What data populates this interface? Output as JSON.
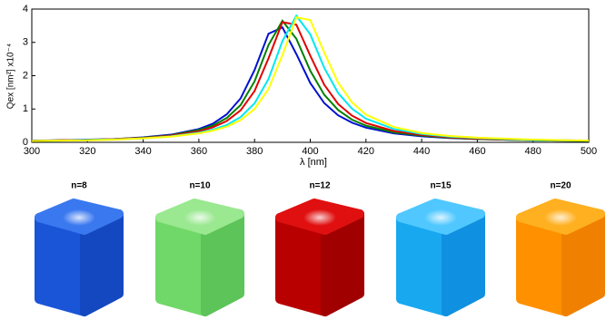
{
  "chart_data": {
    "type": "line",
    "x_label": "λ [nm]",
    "y_label": "Qex [nm²] x10⁻⁴",
    "x": [
      300,
      310,
      320,
      330,
      340,
      350,
      360,
      365,
      370,
      375,
      380,
      385,
      390,
      395,
      400,
      405,
      410,
      415,
      420,
      430,
      440,
      450,
      460,
      480,
      500
    ],
    "series": [
      {
        "name": "n=8",
        "color": "#0010d0",
        "values": [
          0.05,
          0.06,
          0.08,
          0.1,
          0.15,
          0.23,
          0.4,
          0.56,
          0.84,
          1.32,
          2.17,
          3.26,
          3.45,
          2.65,
          1.78,
          1.18,
          0.81,
          0.59,
          0.44,
          0.27,
          0.18,
          0.13,
          0.1,
          0.06,
          0.04
        ]
      },
      {
        "name": "n=10",
        "color": "#008000",
        "values": [
          0.04,
          0.06,
          0.07,
          0.1,
          0.14,
          0.21,
          0.37,
          0.5,
          0.73,
          1.12,
          1.83,
          2.92,
          3.65,
          3.11,
          2.15,
          1.43,
          0.97,
          0.68,
          0.5,
          0.3,
          0.2,
          0.14,
          0.1,
          0.06,
          0.04
        ]
      },
      {
        "name": "n=12",
        "color": "#e00000",
        "values": [
          0.04,
          0.06,
          0.07,
          0.1,
          0.13,
          0.2,
          0.33,
          0.45,
          0.64,
          0.96,
          1.54,
          2.52,
          3.61,
          3.53,
          2.6,
          1.73,
          1.15,
          0.8,
          0.58,
          0.34,
          0.22,
          0.15,
          0.11,
          0.07,
          0.05
        ]
      },
      {
        "name": "n=15",
        "color": "#00e8f0",
        "values": [
          0.04,
          0.05,
          0.07,
          0.09,
          0.12,
          0.18,
          0.29,
          0.38,
          0.52,
          0.76,
          1.17,
          1.9,
          3.04,
          3.8,
          3.24,
          2.24,
          1.48,
          1.01,
          0.71,
          0.4,
          0.25,
          0.17,
          0.13,
          0.07,
          0.05
        ]
      },
      {
        "name": "n=20",
        "color": "#ffff00",
        "values": [
          0.04,
          0.05,
          0.06,
          0.08,
          0.12,
          0.17,
          0.27,
          0.35,
          0.47,
          0.67,
          1.0,
          1.6,
          2.62,
          3.75,
          3.67,
          2.7,
          1.79,
          1.2,
          0.83,
          0.46,
          0.28,
          0.19,
          0.14,
          0.08,
          0.05
        ]
      }
    ],
    "xlim": [
      300,
      500
    ],
    "xticks": [
      300,
      320,
      340,
      360,
      380,
      400,
      420,
      440,
      460,
      480,
      500
    ],
    "ylim": [
      0,
      4
    ],
    "yticks": [
      0,
      1,
      2,
      3,
      4
    ],
    "grid": false
  }
}
